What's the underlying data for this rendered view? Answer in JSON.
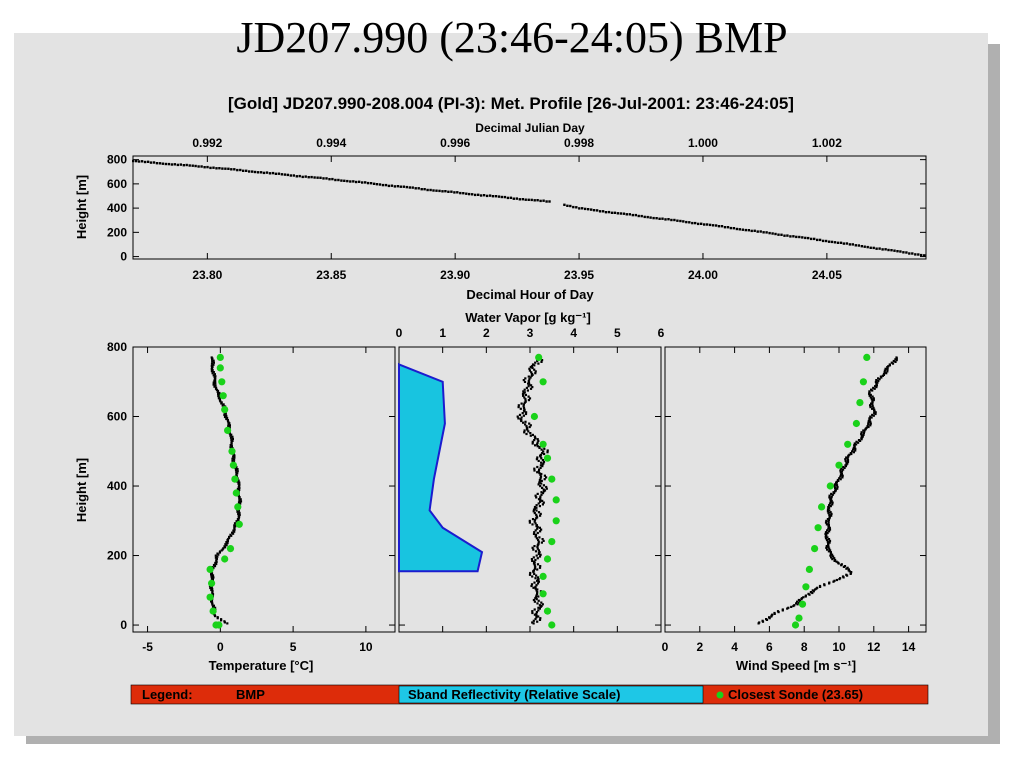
{
  "slide_title": "JD207.990 (23:46-24:05) BMP",
  "figure_title": "[Gold] JD207.990-208.004 (PI-3): Met. Profile [26-Jul-2001: 23:46-24:05]",
  "chart_data": [
    {
      "type": "scatter",
      "name": "height-time",
      "xlabel": "Decimal Hour of Day",
      "top_xlabel": "Decimal Julian Day",
      "ylabel": "Height [m]",
      "xlim": [
        23.77,
        24.09
      ],
      "ylim": [
        -20,
        830
      ],
      "xticks": [
        "23.80",
        "23.85",
        "23.90",
        "23.95",
        "24.00",
        "24.05"
      ],
      "top_xticks": [
        "0.992",
        "0.994",
        "0.996",
        "0.998",
        "1.000",
        "1.002"
      ],
      "yticks": [
        "800",
        "600",
        "400",
        "200",
        "0"
      ],
      "x": [
        23.77,
        23.8,
        23.85,
        23.9,
        23.94,
        23.95,
        24.0,
        24.05,
        24.09
      ],
      "y": [
        790,
        740,
        640,
        530,
        450,
        400,
        270,
        130,
        10
      ]
    },
    {
      "type": "line",
      "name": "temperature",
      "xlabel": "Temperature [°C]",
      "ylabel": "Height [m]",
      "xlim": [
        -6,
        12
      ],
      "ylim": [
        -20,
        800
      ],
      "xticks": [
        "-5",
        "0",
        "5",
        "10"
      ],
      "yticks": [
        "800",
        "600",
        "400",
        "200",
        "0"
      ],
      "series": [
        {
          "name": "BMP",
          "x": [
            -0.6,
            -0.5,
            -0.3,
            0.3,
            0.7,
            0.9,
            1.2,
            1.3,
            1.2,
            0.5,
            -0.2,
            -0.6,
            -0.6,
            -0.4,
            0.4
          ],
          "y": [
            770,
            730,
            680,
            620,
            550,
            480,
            420,
            360,
            300,
            240,
            200,
            150,
            80,
            30,
            5
          ]
        },
        {
          "name": "Closest Sonde (23.65)",
          "x": [
            0.0,
            0.0,
            0.1,
            0.2,
            0.3,
            0.5,
            0.8,
            0.9,
            1.0,
            1.1,
            1.2,
            1.3,
            0.7,
            0.3,
            -0.7,
            -0.6,
            -0.7,
            -0.5,
            -0.3,
            -0.1
          ],
          "y": [
            770,
            740,
            700,
            660,
            620,
            560,
            500,
            460,
            420,
            380,
            340,
            290,
            220,
            190,
            160,
            120,
            80,
            40,
            0,
            0
          ]
        }
      ]
    },
    {
      "type": "line",
      "name": "water-vapor",
      "top_xlabel": "Water Vapor [g kg⁻¹]",
      "xlim": [
        0,
        6
      ],
      "ylim": [
        -20,
        800
      ],
      "top_xticks": [
        "0",
        "1",
        "2",
        "3",
        "4",
        "5",
        "6"
      ],
      "series": [
        {
          "name": "BMP",
          "x": [
            3.2,
            3.0,
            2.9,
            2.8,
            3.0,
            3.3,
            3.2,
            3.3,
            3.2,
            3.1,
            3.2,
            3.1,
            3.2,
            3.1
          ],
          "y": [
            770,
            720,
            660,
            600,
            550,
            500,
            450,
            400,
            350,
            300,
            250,
            150,
            60,
            5
          ]
        },
        {
          "name": "Closest Sonde (23.65)",
          "x": [
            3.2,
            3.3,
            3.1,
            3.3,
            3.4,
            3.5,
            3.6,
            3.6,
            3.5,
            3.4,
            3.3,
            3.3,
            3.4,
            3.5
          ],
          "y": [
            770,
            700,
            600,
            520,
            480,
            420,
            360,
            300,
            240,
            190,
            140,
            90,
            40,
            0
          ]
        },
        {
          "name": "Sband Reflectivity (Relative Scale)",
          "type": "area",
          "x": [
            0,
            1.0,
            1.05,
            0.8,
            0.7,
            1.0,
            1.9,
            1.8,
            0
          ],
          "y": [
            750,
            700,
            580,
            420,
            330,
            280,
            210,
            155,
            155
          ]
        }
      ]
    },
    {
      "type": "line",
      "name": "wind-speed",
      "xlabel": "Wind Speed [m s⁻¹]",
      "xlim": [
        0,
        15
      ],
      "ylim": [
        -20,
        800
      ],
      "xticks": [
        "0",
        "2",
        "4",
        "6",
        "8",
        "10",
        "12",
        "14"
      ],
      "series": [
        {
          "name": "BMP",
          "x": [
            13.3,
            12.5,
            11.8,
            12.0,
            11.5,
            10.5,
            10.0,
            9.5,
            9.4,
            9.3,
            9.5,
            10.2,
            10.8,
            9.8,
            8.5,
            7.5,
            6.2,
            5.4
          ],
          "y": [
            770,
            720,
            670,
            610,
            560,
            480,
            420,
            360,
            300,
            250,
            200,
            170,
            150,
            130,
            100,
            60,
            30,
            5
          ]
        },
        {
          "name": "Closest Sonde (23.65)",
          "x": [
            11.6,
            11.4,
            11.2,
            11.0,
            10.5,
            10.0,
            9.5,
            9.0,
            8.8,
            8.6,
            8.3,
            8.1,
            7.9,
            7.7,
            7.5
          ],
          "y": [
            770,
            700,
            640,
            580,
            520,
            460,
            400,
            340,
            280,
            220,
            160,
            110,
            60,
            20,
            0
          ]
        }
      ]
    }
  ],
  "legend": {
    "label": "Legend:",
    "item_bmp": "BMP",
    "item_sband": "Sband Reflectivity (Relative Scale)",
    "item_sonde": "Closest Sonde (23.65)"
  },
  "colors": {
    "panel_bg": "#e3e3e3",
    "legend_red": "#dd2c0a",
    "legend_cyan": "#1ec7e6",
    "sband_fill": "#18c4e0",
    "sband_edge": "#1c1ccf",
    "sonde_green": "#1ad21a",
    "data_black": "#000000"
  }
}
